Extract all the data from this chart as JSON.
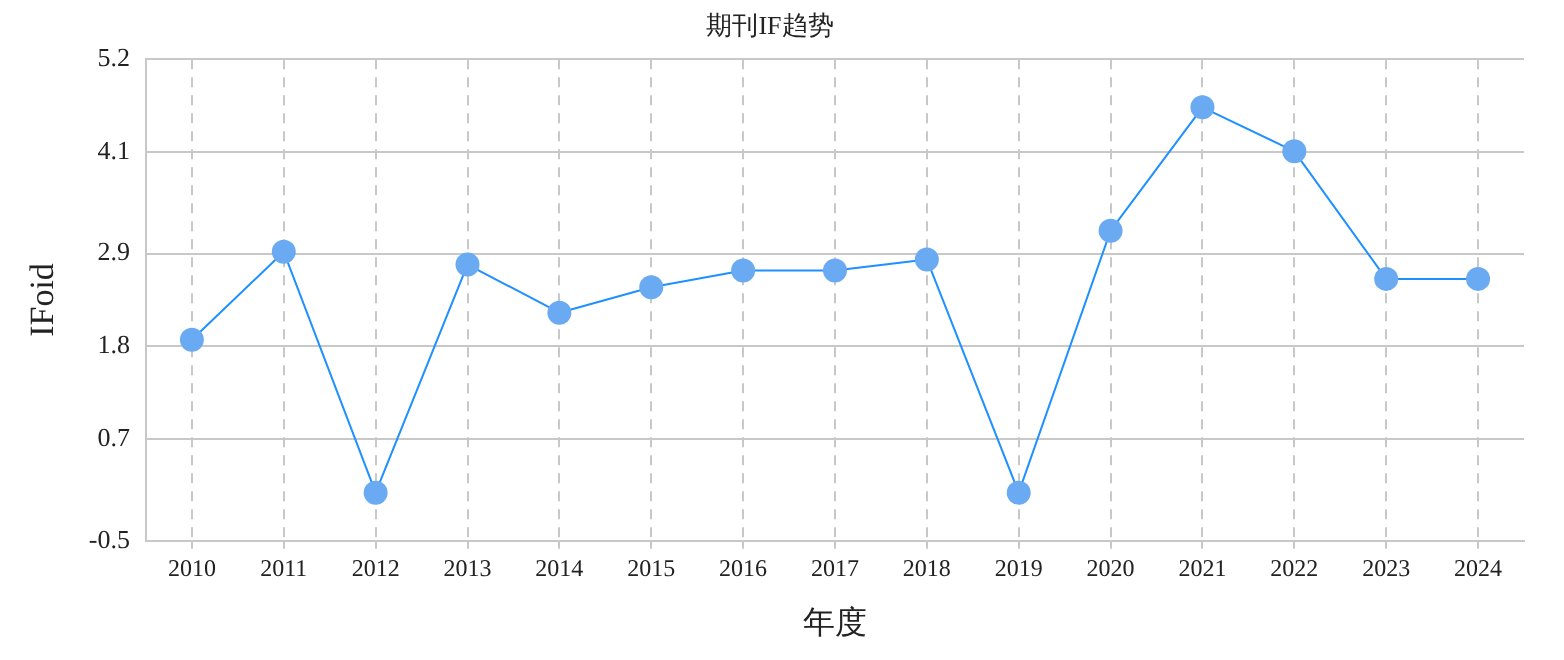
{
  "chart_data": {
    "type": "line",
    "title": "期刊IF趋势",
    "xlabel": "年度",
    "ylabel": "IFoid",
    "categories": [
      "2010",
      "2011",
      "2012",
      "2013",
      "2014",
      "2015",
      "2016",
      "2017",
      "2018",
      "2019",
      "2020",
      "2021",
      "2022",
      "2023",
      "2024"
    ],
    "series": [
      {
        "color": "#1e90ff",
        "values": [
          1.88,
          2.92,
          0.07,
          2.77,
          2.2,
          2.5,
          2.7,
          2.7,
          2.83,
          0.07,
          3.17,
          4.63,
          4.11,
          2.6,
          2.6
        ]
      }
    ],
    "ylim": [
      -0.5,
      5.2
    ],
    "yticks": [
      -0.5,
      0.7,
      1.8,
      2.9,
      4.1,
      5.2
    ],
    "grid": true,
    "legend": false,
    "marker": "circle",
    "line_style": "solid"
  }
}
